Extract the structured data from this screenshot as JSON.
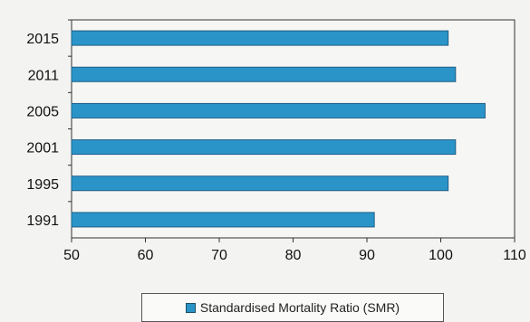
{
  "chart_data": {
    "type": "bar",
    "orientation": "horizontal",
    "categories": [
      "2015",
      "2011",
      "2005",
      "2001",
      "1995",
      "1991"
    ],
    "series": [
      {
        "name": "Standardised Mortality Ratio (SMR)",
        "values": [
          101,
          102,
          106,
          102,
          101,
          91
        ]
      }
    ],
    "xlim": [
      50,
      110
    ],
    "x_ticks": [
      "50",
      "60",
      "70",
      "80",
      "90",
      "100",
      "110"
    ],
    "grid": false,
    "legend_position": "bottom",
    "bar_color": "#2a94c8"
  }
}
